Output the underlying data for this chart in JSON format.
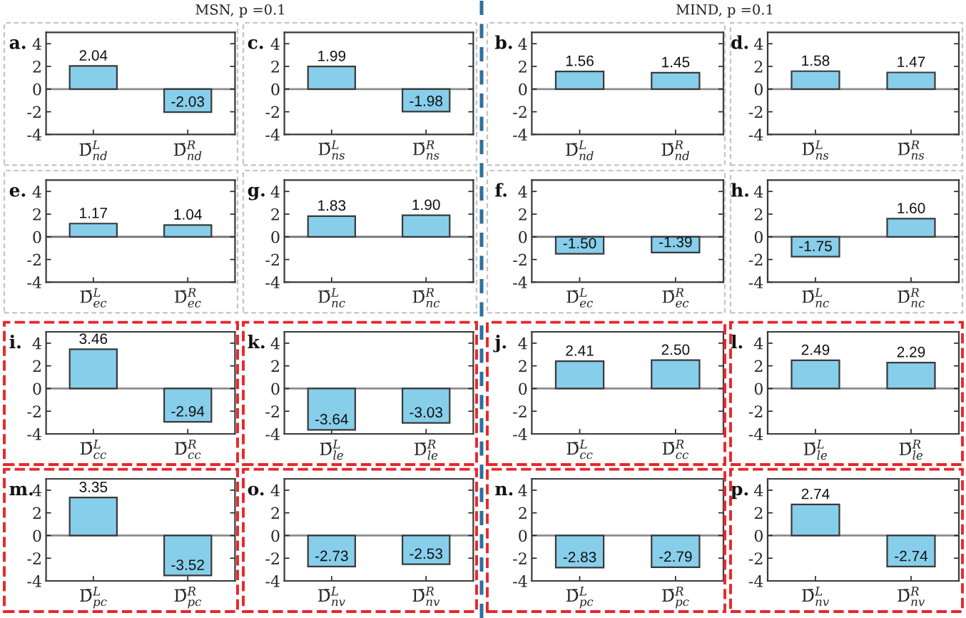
{
  "chart_data": [
    {
      "type": "bar",
      "title": "a.",
      "annotations": [
        "MSN, p =0.1"
      ],
      "categories": [
        "D̄$^{L}$$_{nd}$",
        "D̄$^{R}$$_{nd}$"
      ],
      "values": [
        2.04,
        -2.03
      ],
      "value_labels": [
        "2.04",
        "-2.03"
      ],
      "color": "#87ceeb",
      "ylim": [
        -4,
        5
      ],
      "yticks": [
        -4,
        -2,
        0,
        2,
        4
      ],
      "ref_lines": [
        {
          "axis": "y",
          "value": 0,
          "color": "#8c8c8c"
        }
      ]
    },
    {
      "type": "bar",
      "title": "c.",
      "categories": [
        "D̄$^{L}$$_{ns}$",
        "D̄$^{R}$$_{ns}$"
      ],
      "values": [
        1.99,
        -1.98
      ],
      "value_labels": [
        "1.99",
        "-1.98"
      ],
      "color": "#87ceeb",
      "ylim": [
        -4,
        5
      ],
      "yticks": [
        -4,
        -2,
        0,
        2,
        4
      ],
      "ref_lines": [
        {
          "axis": "y",
          "value": 0,
          "color": "#8c8c8c"
        }
      ]
    },
    {
      "type": "bar",
      "title": "b.",
      "annotations": [
        "MIND, p =0.1"
      ],
      "categories": [
        "D̄$^{L}$$_{nd}$",
        "D̄$^{R}$$_{nd}$"
      ],
      "values": [
        1.56,
        1.45
      ],
      "value_labels": [
        "1.56",
        "1.45"
      ],
      "color": "#87ceeb",
      "ylim": [
        -4,
        5
      ],
      "yticks": [
        -4,
        -2,
        0,
        2,
        4
      ],
      "ref_lines": [
        {
          "axis": "y",
          "value": 0,
          "color": "#8c8c8c"
        }
      ]
    },
    {
      "type": "bar",
      "title": "d.",
      "categories": [
        "D̄$^{L}$$_{ns}$",
        "D̄$^{R}$$_{ns}$"
      ],
      "values": [
        1.58,
        1.47
      ],
      "value_labels": [
        "1.58",
        "1.47"
      ],
      "color": "#87ceeb",
      "ylim": [
        -4,
        5
      ],
      "yticks": [
        -4,
        -2,
        0,
        2,
        4
      ],
      "ref_lines": [
        {
          "axis": "y",
          "value": 0,
          "color": "#8c8c8c"
        }
      ]
    },
    {
      "type": "bar",
      "title": "e.",
      "categories": [
        "D̄$^{L}$$_{ec}$",
        "D̄$^{R}$$_{ec}$"
      ],
      "values": [
        1.17,
        1.04
      ],
      "value_labels": [
        "1.17",
        "1.04"
      ],
      "color": "#87ceeb",
      "ylim": [
        -4,
        5
      ],
      "yticks": [
        -4,
        -2,
        0,
        2,
        4
      ],
      "ref_lines": [
        {
          "axis": "y",
          "value": 0,
          "color": "#707070"
        }
      ]
    },
    {
      "type": "bar",
      "title": "g.",
      "categories": [
        "D̄$^{L}$$_{nc}$",
        "D̄$^{R}$$_{nc}$"
      ],
      "values": [
        1.83,
        1.9
      ],
      "value_labels": [
        "1.83",
        "1.90"
      ],
      "color": "#87ceeb",
      "ylim": [
        -4,
        5
      ],
      "yticks": [
        -4,
        -2,
        0,
        2,
        4
      ],
      "ref_lines": [
        {
          "axis": "y",
          "value": 0,
          "color": "#707070"
        }
      ]
    },
    {
      "type": "bar",
      "title": "f.",
      "categories": [
        "D̄$^{L}$$_{ec}$",
        "D̄$^{R}$$_{ec}$"
      ],
      "values": [
        -1.5,
        -1.39
      ],
      "value_labels": [
        "-1.50",
        "-1.39"
      ],
      "color": "#87ceeb",
      "ylim": [
        -4,
        5
      ],
      "yticks": [
        -4,
        -2,
        0,
        2,
        4
      ],
      "ref_lines": [
        {
          "axis": "y",
          "value": 0,
          "color": "#707070"
        }
      ]
    },
    {
      "type": "bar",
      "title": "h.",
      "categories": [
        "D̄$^{L}$$_{nc}$",
        "D̄$^{R}$$_{nc}$"
      ],
      "values": [
        -1.75,
        1.6
      ],
      "value_labels": [
        "-1.75",
        "1.60"
      ],
      "color": "#87ceeb",
      "ylim": [
        -4,
        5
      ],
      "yticks": [
        -4,
        -2,
        0,
        2,
        4
      ],
      "ref_lines": [
        {
          "axis": "y",
          "value": 0,
          "color": "#707070"
        }
      ]
    },
    {
      "type": "bar",
      "title": "i.",
      "categories": [
        "D̄$^{L}$$_{cc}$",
        "D̄$^{R}$$_{cc}$"
      ],
      "values": [
        3.46,
        -2.94
      ],
      "value_labels": [
        "3.46",
        "-2.94"
      ],
      "color": "#87ceeb",
      "ylim": [
        -4,
        5
      ],
      "yticks": [
        -4,
        -2,
        0,
        2,
        4
      ],
      "ref_lines": [
        {
          "axis": "y",
          "value": 0,
          "color": "#8c8c8c"
        }
      ]
    },
    {
      "type": "bar",
      "title": "k.",
      "categories": [
        "D̄$^{L}$$_{le}$",
        "D̄$^{R}$$_{le}$"
      ],
      "values": [
        -3.64,
        -3.03
      ],
      "value_labels": [
        "-3.64",
        "-3.03"
      ],
      "color": "#87ceeb",
      "ylim": [
        -4,
        5
      ],
      "yticks": [
        -4,
        -2,
        0,
        2,
        4
      ],
      "ref_lines": [
        {
          "axis": "y",
          "value": 0,
          "color": "#8c8c8c"
        }
      ]
    },
    {
      "type": "bar",
      "title": "j.",
      "categories": [
        "D̄$^{L}$$_{cc}$",
        "D̄$^{R}$$_{cc}$"
      ],
      "values": [
        2.41,
        2.5
      ],
      "value_labels": [
        "2.41",
        "2.50"
      ],
      "color": "#87ceeb",
      "ylim": [
        -4,
        5
      ],
      "yticks": [
        -4,
        -2,
        0,
        2,
        4
      ],
      "ref_lines": [
        {
          "axis": "y",
          "value": 0,
          "color": "#8c8c8c"
        }
      ]
    },
    {
      "type": "bar",
      "title": "l.",
      "categories": [
        "D̄$^{L}$$_{le}$",
        "D̄$^{R}$$_{le}$"
      ],
      "values": [
        2.49,
        2.29
      ],
      "value_labels": [
        "2.49",
        "2.29"
      ],
      "color": "#87ceeb",
      "ylim": [
        -4,
        5
      ],
      "yticks": [
        -4,
        -2,
        0,
        2,
        4
      ],
      "ref_lines": [
        {
          "axis": "y",
          "value": 0,
          "color": "#8c8c8c"
        }
      ]
    },
    {
      "type": "bar",
      "title": "m.",
      "categories": [
        "D̄$^{L}$$_{pc}$",
        "D̄$^{R}$$_{pc}$"
      ],
      "values": [
        3.35,
        -3.52
      ],
      "value_labels": [
        "3.35",
        "-3.52"
      ],
      "color": "#87ceeb",
      "ylim": [
        -4,
        5
      ],
      "yticks": [
        -4,
        -2,
        0,
        2,
        4
      ],
      "ref_lines": [
        {
          "axis": "y",
          "value": 0,
          "color": "#8c8c8c"
        }
      ]
    },
    {
      "type": "bar",
      "title": "o.",
      "categories": [
        "D̄$^{L}$$_{nv}$",
        "D̄$^{R}$$_{nv}$"
      ],
      "values": [
        -2.73,
        -2.53
      ],
      "value_labels": [
        "-2.73",
        "-2.53"
      ],
      "color": "#87ceeb",
      "ylim": [
        -4,
        5
      ],
      "yticks": [
        -4,
        -2,
        0,
        2,
        4
      ],
      "ref_lines": [
        {
          "axis": "y",
          "value": 0,
          "color": "#8c8c8c"
        }
      ]
    },
    {
      "type": "bar",
      "title": "n.",
      "categories": [
        "D̄$^{L}$$_{pc}$",
        "D̄$^{R}$$_{pc}$"
      ],
      "values": [
        -2.83,
        -2.79
      ],
      "value_labels": [
        "-2.83",
        "-2.79"
      ],
      "color": "#87ceeb",
      "ylim": [
        -4,
        5
      ],
      "yticks": [
        -4,
        -2,
        0,
        2,
        4
      ],
      "ref_lines": [
        {
          "axis": "y",
          "value": 0,
          "color": "#8c8c8c"
        }
      ]
    },
    {
      "type": "bar",
      "title": "p.",
      "categories": [
        "D̄$^{L}$$_{nv}$",
        "D̄$^{R}$$_{nv}$"
      ],
      "values": [
        2.74,
        -2.74
      ],
      "value_labels": [
        "2.74",
        "-2.74"
      ],
      "color": "#87ceeb",
      "ylim": [
        -4,
        5
      ],
      "yticks": [
        -4,
        -2,
        0,
        2,
        4
      ],
      "ref_lines": [
        {
          "axis": "y",
          "value": 0,
          "color": "#8c8c8c"
        }
      ]
    }
  ]
}
